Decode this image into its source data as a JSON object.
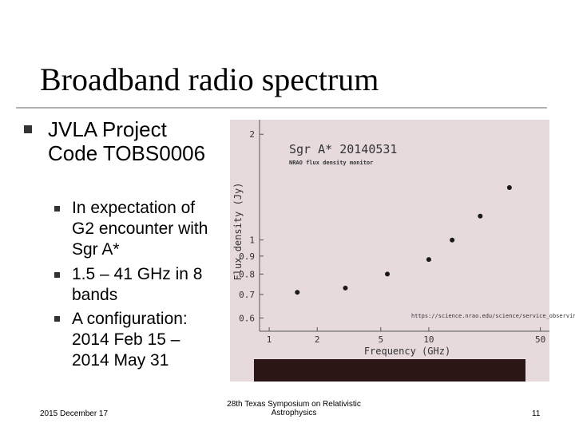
{
  "header": {
    "title": "Broadband radio spectrum"
  },
  "bullets": [
    {
      "text": "JVLA Project Code TOBS0006",
      "sub": [
        "In expectation of G2 encounter with Sgr A*",
        "1.5 – 41 GHz in 8 bands",
        "A configuration: 2014 Feb 15 – 2014 May 31"
      ]
    }
  ],
  "footer": {
    "date": "2015 December 17",
    "event": "28th Texas Symposium on Relativistic Astrophysics",
    "page": "11"
  },
  "chart_data": {
    "type": "scatter",
    "title": "Sgr A* 20140531",
    "subtitle": "NRAO flux density monitor",
    "x_label": "Frequency (GHz)",
    "y_label": "Flux density (Jy)",
    "source": "https://science.nrao.edu/science/service_observing",
    "log_x": true,
    "log_y": true,
    "x": [
      1.5,
      3,
      5.5,
      10,
      14,
      21,
      32
    ],
    "series": [
      {
        "color": "#1a1a1a",
        "values": [
          0.71,
          0.73,
          0.8,
          0.88,
          1.0,
          1.17,
          1.41
        ]
      }
    ],
    "xlim": [
      0.87,
      57
    ],
    "ylim": [
      0.55,
      2.2
    ],
    "xticks": [
      1,
      2,
      5,
      10,
      50
    ],
    "yticks": [
      0.6,
      0.7,
      0.8,
      0.9,
      1,
      2
    ]
  }
}
